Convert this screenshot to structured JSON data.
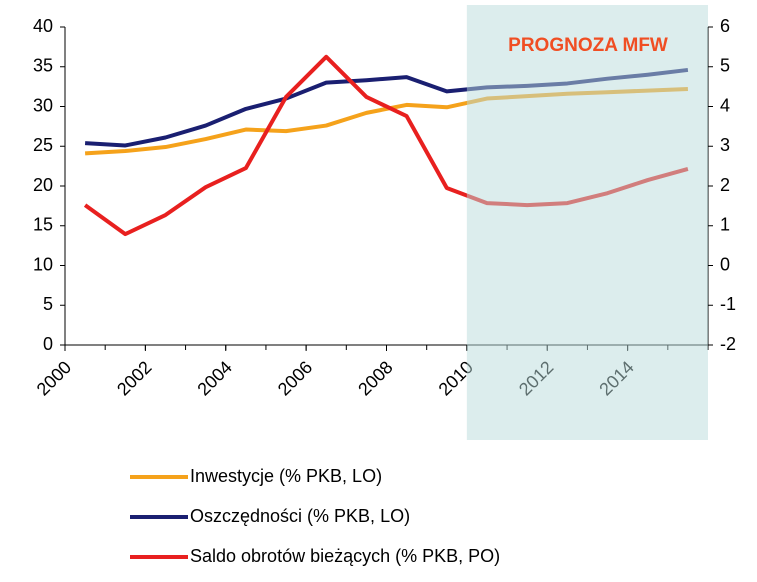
{
  "chart_data": {
    "type": "line",
    "x": [
      2000.5,
      2001.5,
      2002.5,
      2003.5,
      2004.5,
      2005.5,
      2006.5,
      2007.5,
      2008.5,
      2009.5,
      2010.5,
      2011.5,
      2012.5,
      2013.5,
      2014.5,
      2015.5
    ],
    "xlim": [
      2000,
      2016
    ],
    "xticks": [
      2000,
      2002,
      2004,
      2006,
      2008,
      2010,
      2012,
      2014
    ],
    "ylim": [
      0,
      40
    ],
    "yticks": [
      0,
      5,
      10,
      15,
      20,
      25,
      30,
      35,
      40
    ],
    "y2lim": [
      -2,
      6
    ],
    "y2ticks": [
      -2,
      -1,
      0,
      1,
      2,
      3,
      4,
      5,
      6
    ],
    "series": [
      {
        "name": "Inwestycje (% PKB, LO)",
        "color": "#f5a21b",
        "values": [
          24.1,
          24.4,
          24.9,
          25.9,
          27.1,
          26.9,
          27.6,
          29.2,
          30.2,
          29.9,
          31.0,
          31.3,
          31.6,
          31.8,
          32.0,
          32.2
        ]
      },
      {
        "name": "Oszczędności (% PKB, LO)",
        "color": "#1a1f71",
        "values": [
          25.4,
          25.1,
          26.1,
          27.6,
          29.7,
          31.0,
          33.0,
          33.3,
          33.7,
          31.9,
          32.4,
          32.6,
          32.9,
          33.5,
          34.0,
          34.6
        ]
      },
      {
        "name": "Saldo obrotów bieżących (% PKB, PO)",
        "color": "#e8201f",
        "axis": "y2",
        "values": [
          1.52,
          0.79,
          1.27,
          1.97,
          2.45,
          4.24,
          5.25,
          4.24,
          3.76,
          1.95,
          1.57,
          1.52,
          1.57,
          1.82,
          2.15,
          2.43
        ]
      }
    ],
    "shade": {
      "from": 2010,
      "to": 2016,
      "label": "PROGNOZA MFW"
    }
  }
}
